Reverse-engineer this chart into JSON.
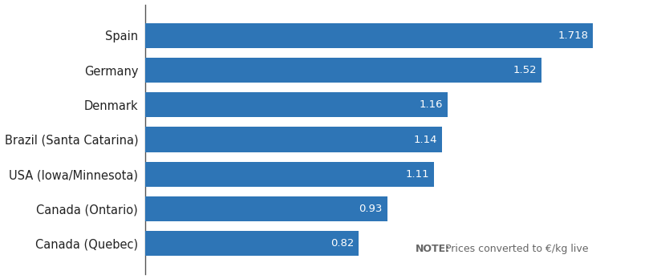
{
  "categories": [
    "Canada (Quebec)",
    "Canada (Ontario)",
    "USA (Iowa/Minnesota)",
    "Brazil (Santa Catarina)",
    "Denmark",
    "Germany",
    "Spain"
  ],
  "values": [
    0.82,
    0.93,
    1.11,
    1.14,
    1.16,
    1.52,
    1.718
  ],
  "bar_color": "#2E75B6",
  "bar_label_color": "#FFFFFF",
  "bar_label_fontsize": 9.5,
  "xlim": [
    0,
    1.95
  ],
  "note_bold": "NOTE:",
  "note_regular": " Prices converted to €/kg live",
  "background_color": "#FFFFFF",
  "spine_color": "#555555",
  "tick_label_fontsize": 10.5,
  "bar_height": 0.72
}
